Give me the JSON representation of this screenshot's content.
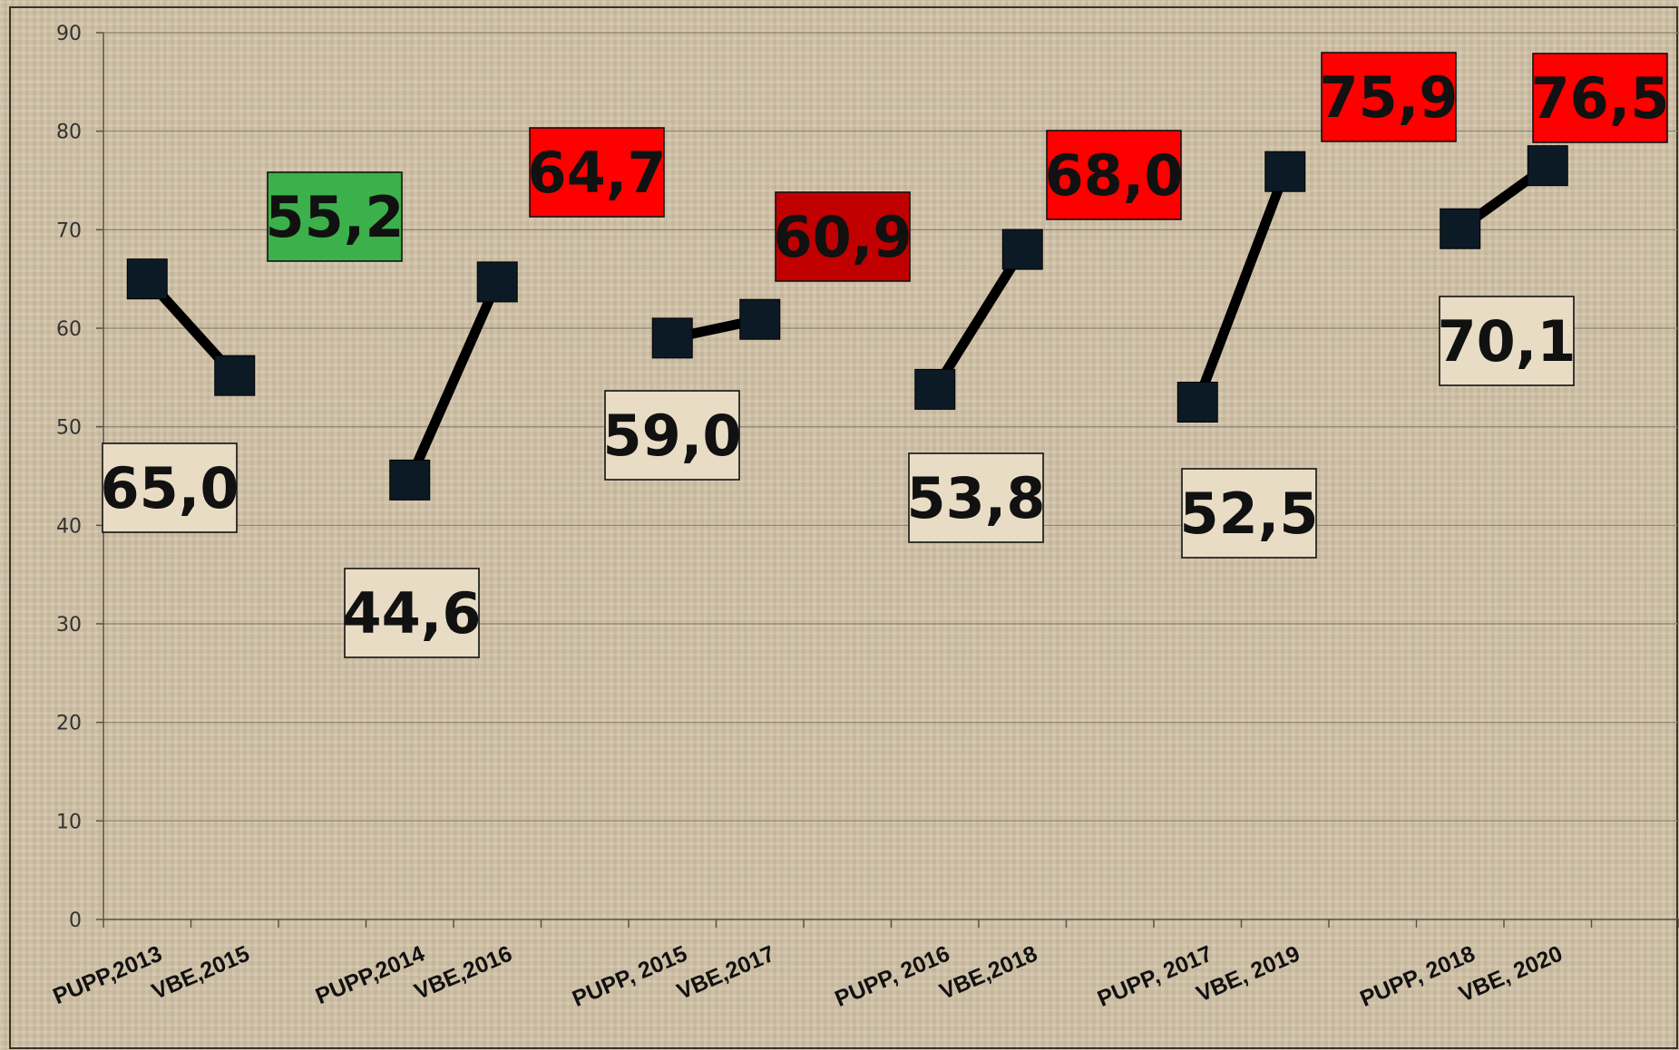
{
  "chart_data": {
    "type": "line",
    "categories": [
      "PUPP,2013",
      "VBE,2015",
      "",
      "PUPP,2014",
      "VBE,2016",
      "",
      "PUPP, 2015",
      "VBE,2017",
      "",
      "PUPP, 2016",
      "VBE,2018",
      "",
      "PUPP, 2017",
      "VBE, 2019",
      "",
      "PUPP, 2018",
      "VBE, 2020",
      ""
    ],
    "yticks": [
      "0",
      "10",
      "20",
      "30",
      "40",
      "50",
      "60",
      "70",
      "80",
      "90"
    ],
    "ylim": [
      0,
      90
    ],
    "grid": true,
    "title": "",
    "xlabel": "",
    "ylabel": "",
    "segments": [
      {
        "x": [
          "PUPP,2013",
          "VBE,2015"
        ],
        "values": [
          65.0,
          55.2
        ],
        "labels": [
          "65,0",
          "55,2"
        ],
        "label_colors": [
          "#e8dcc5",
          "#3cb04a"
        ]
      },
      {
        "x": [
          "PUPP,2014",
          "VBE,2016"
        ],
        "values": [
          44.6,
          64.7
        ],
        "labels": [
          "44,6",
          "64,7"
        ],
        "label_colors": [
          "#e8dcc5",
          "#ff0000"
        ]
      },
      {
        "x": [
          "PUPP, 2015",
          "VBE,2017"
        ],
        "values": [
          59.0,
          60.9
        ],
        "labels": [
          "59,0",
          "60,9"
        ],
        "label_colors": [
          "#e8dcc5",
          "#c00000"
        ]
      },
      {
        "x": [
          "PUPP, 2016",
          "VBE,2018"
        ],
        "values": [
          53.8,
          68.0
        ],
        "labels": [
          "53,8",
          "68,0"
        ],
        "label_colors": [
          "#e8dcc5",
          "#ff0000"
        ]
      },
      {
        "x": [
          "PUPP, 2017",
          "VBE, 2019"
        ],
        "values": [
          52.5,
          75.9
        ],
        "labels": [
          "52,5",
          "75,9"
        ],
        "label_colors": [
          "#e8dcc5",
          "#ff0000"
        ]
      },
      {
        "x": [
          "PUPP, 2018",
          "VBE, 2020"
        ],
        "values": [
          70.1,
          76.5
        ],
        "labels": [
          "70,1",
          "76,5"
        ],
        "label_colors": [
          "#e8dcc5",
          "#ff0000"
        ]
      }
    ],
    "line_color": "#000000",
    "marker_color": "#0c1a26",
    "background_color": "#cdbfa6"
  }
}
